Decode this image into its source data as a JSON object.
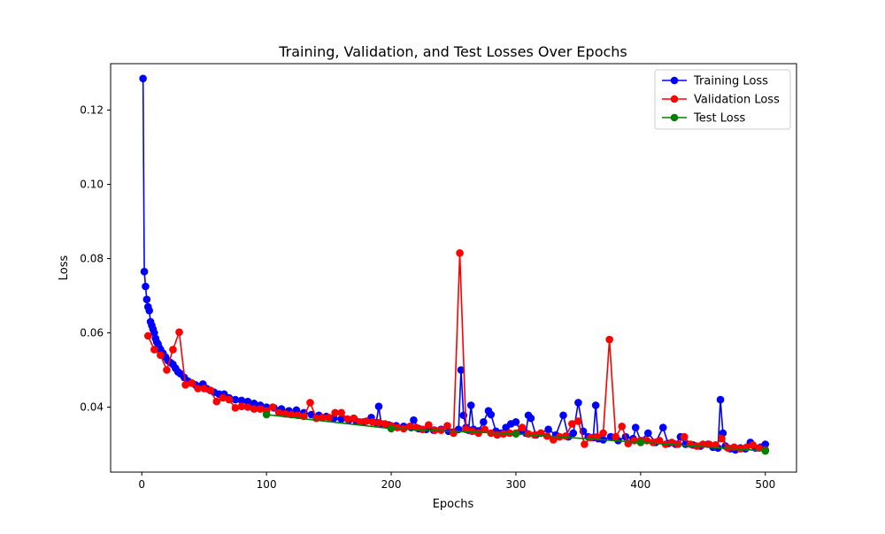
{
  "chart_data": {
    "type": "line",
    "title": "Training, Validation, and Test Losses Over Epochs",
    "xlabel": "Epochs",
    "ylabel": "Loss",
    "xlim": [
      -25,
      525
    ],
    "ylim": [
      0.0225,
      0.1325
    ],
    "xticks": [
      0,
      100,
      200,
      300,
      400,
      500
    ],
    "yticks": [
      0.04,
      0.06,
      0.08,
      0.1,
      0.12
    ],
    "xtick_labels": [
      "0",
      "100",
      "200",
      "300",
      "400",
      "500"
    ],
    "ytick_labels": [
      "0.04",
      "0.06",
      "0.08",
      "0.10",
      "0.12"
    ],
    "grid": false,
    "legend_position": "top-right",
    "series": [
      {
        "name": "Training Loss",
        "color": "#0000ff",
        "marker": "circle",
        "points": [
          [
            1,
            0.1285
          ],
          [
            2,
            0.0765
          ],
          [
            3,
            0.0725
          ],
          [
            4,
            0.069
          ],
          [
            5,
            0.067
          ],
          [
            6,
            0.066
          ],
          [
            7,
            0.063
          ],
          [
            8,
            0.062
          ],
          [
            9,
            0.061
          ],
          [
            10,
            0.06
          ],
          [
            11,
            0.0585
          ],
          [
            12,
            0.0575
          ],
          [
            13,
            0.057
          ],
          [
            14,
            0.056
          ],
          [
            15,
            0.0555
          ],
          [
            17,
            0.0545
          ],
          [
            19,
            0.0535
          ],
          [
            21,
            0.0525
          ],
          [
            23,
            0.052
          ],
          [
            25,
            0.0515
          ],
          [
            27,
            0.0505
          ],
          [
            29,
            0.0495
          ],
          [
            31,
            0.049
          ],
          [
            34,
            0.048
          ],
          [
            37,
            0.047
          ],
          [
            40,
            0.0465
          ],
          [
            43,
            0.046
          ],
          [
            46,
            0.0455
          ],
          [
            49,
            0.0462
          ],
          [
            52,
            0.045
          ],
          [
            55,
            0.0445
          ],
          [
            58,
            0.044
          ],
          [
            62,
            0.0435
          ],
          [
            66,
            0.0435
          ],
          [
            70,
            0.0425
          ],
          [
            75,
            0.042
          ],
          [
            80,
            0.0418
          ],
          [
            85,
            0.0415
          ],
          [
            90,
            0.041
          ],
          [
            95,
            0.0405
          ],
          [
            100,
            0.04
          ],
          [
            106,
            0.0398
          ],
          [
            112,
            0.0395
          ],
          [
            118,
            0.039
          ],
          [
            124,
            0.0392
          ],
          [
            130,
            0.0385
          ],
          [
            136,
            0.038
          ],
          [
            142,
            0.0378
          ],
          [
            148,
            0.0375
          ],
          [
            154,
            0.037
          ],
          [
            160,
            0.0368
          ],
          [
            166,
            0.0365
          ],
          [
            172,
            0.0362
          ],
          [
            178,
            0.036
          ],
          [
            184,
            0.0372
          ],
          [
            188,
            0.0358
          ],
          [
            190,
            0.0402
          ],
          [
            192,
            0.0355
          ],
          [
            198,
            0.0352
          ],
          [
            204,
            0.035
          ],
          [
            210,
            0.0348
          ],
          [
            216,
            0.0345
          ],
          [
            218,
            0.0365
          ],
          [
            222,
            0.0342
          ],
          [
            228,
            0.034
          ],
          [
            234,
            0.0338
          ],
          [
            240,
            0.034
          ],
          [
            246,
            0.0335
          ],
          [
            250,
            0.0333
          ],
          [
            254,
            0.034
          ],
          [
            256,
            0.05
          ],
          [
            258,
            0.0378
          ],
          [
            260,
            0.0345
          ],
          [
            262,
            0.0338
          ],
          [
            264,
            0.0405
          ],
          [
            266,
            0.034
          ],
          [
            270,
            0.0336
          ],
          [
            274,
            0.036
          ],
          [
            278,
            0.039
          ],
          [
            280,
            0.038
          ],
          [
            284,
            0.0335
          ],
          [
            288,
            0.033
          ],
          [
            292,
            0.0345
          ],
          [
            296,
            0.0355
          ],
          [
            300,
            0.036
          ],
          [
            304,
            0.0335
          ],
          [
            308,
            0.033
          ],
          [
            310,
            0.0378
          ],
          [
            312,
            0.037
          ],
          [
            316,
            0.0325
          ],
          [
            320,
            0.033
          ],
          [
            326,
            0.034
          ],
          [
            332,
            0.0325
          ],
          [
            338,
            0.0378
          ],
          [
            342,
            0.032
          ],
          [
            346,
            0.033
          ],
          [
            350,
            0.0412
          ],
          [
            354,
            0.0335
          ],
          [
            358,
            0.032
          ],
          [
            362,
            0.0318
          ],
          [
            364,
            0.0405
          ],
          [
            366,
            0.0315
          ],
          [
            370,
            0.0312
          ],
          [
            376,
            0.032
          ],
          [
            382,
            0.031
          ],
          [
            388,
            0.032
          ],
          [
            394,
            0.0315
          ],
          [
            396,
            0.0345
          ],
          [
            400,
            0.031
          ],
          [
            406,
            0.033
          ],
          [
            412,
            0.0305
          ],
          [
            418,
            0.0345
          ],
          [
            422,
            0.0302
          ],
          [
            428,
            0.03
          ],
          [
            432,
            0.032
          ],
          [
            436,
            0.03
          ],
          [
            442,
            0.0298
          ],
          [
            448,
            0.0295
          ],
          [
            454,
            0.03
          ],
          [
            458,
            0.0292
          ],
          [
            462,
            0.029
          ],
          [
            464,
            0.042
          ],
          [
            466,
            0.033
          ],
          [
            468,
            0.0295
          ],
          [
            472,
            0.0288
          ],
          [
            476,
            0.0285
          ],
          [
            480,
            0.029
          ],
          [
            484,
            0.0288
          ],
          [
            488,
            0.0305
          ],
          [
            492,
            0.029
          ],
          [
            496,
            0.0292
          ],
          [
            500,
            0.03
          ]
        ]
      },
      {
        "name": "Validation Loss",
        "color": "#ff0000",
        "marker": "circle",
        "points": [
          [
            5,
            0.0592
          ],
          [
            10,
            0.0555
          ],
          [
            15,
            0.054
          ],
          [
            20,
            0.05
          ],
          [
            25,
            0.0555
          ],
          [
            30,
            0.0602
          ],
          [
            35,
            0.046
          ],
          [
            40,
            0.0465
          ],
          [
            45,
            0.045
          ],
          [
            50,
            0.045
          ],
          [
            55,
            0.0445
          ],
          [
            60,
            0.0415
          ],
          [
            65,
            0.0425
          ],
          [
            70,
            0.042
          ],
          [
            75,
            0.0398
          ],
          [
            80,
            0.0402
          ],
          [
            85,
            0.04
          ],
          [
            90,
            0.0395
          ],
          [
            95,
            0.0395
          ],
          [
            100,
            0.039
          ],
          [
            105,
            0.04
          ],
          [
            110,
            0.0385
          ],
          [
            115,
            0.0382
          ],
          [
            120,
            0.038
          ],
          [
            125,
            0.0378
          ],
          [
            130,
            0.0375
          ],
          [
            135,
            0.0412
          ],
          [
            140,
            0.037
          ],
          [
            145,
            0.0372
          ],
          [
            150,
            0.0372
          ],
          [
            155,
            0.0385
          ],
          [
            160,
            0.0385
          ],
          [
            165,
            0.0368
          ],
          [
            170,
            0.037
          ],
          [
            175,
            0.036
          ],
          [
            180,
            0.0362
          ],
          [
            185,
            0.036
          ],
          [
            190,
            0.0358
          ],
          [
            195,
            0.0355
          ],
          [
            200,
            0.035
          ],
          [
            205,
            0.0345
          ],
          [
            210,
            0.0342
          ],
          [
            215,
            0.0348
          ],
          [
            220,
            0.0345
          ],
          [
            225,
            0.034
          ],
          [
            230,
            0.0352
          ],
          [
            235,
            0.0338
          ],
          [
            240,
            0.0338
          ],
          [
            245,
            0.035
          ],
          [
            250,
            0.033
          ],
          [
            255,
            0.0815
          ],
          [
            260,
            0.034
          ],
          [
            265,
            0.0335
          ],
          [
            270,
            0.033
          ],
          [
            275,
            0.034
          ],
          [
            280,
            0.033
          ],
          [
            285,
            0.0325
          ],
          [
            290,
            0.0328
          ],
          [
            295,
            0.033
          ],
          [
            300,
            0.033
          ],
          [
            305,
            0.0345
          ],
          [
            310,
            0.0328
          ],
          [
            315,
            0.0325
          ],
          [
            320,
            0.033
          ],
          [
            325,
            0.0322
          ],
          [
            330,
            0.0312
          ],
          [
            335,
            0.032
          ],
          [
            340,
            0.0322
          ],
          [
            345,
            0.0355
          ],
          [
            350,
            0.0362
          ],
          [
            355,
            0.03
          ],
          [
            360,
            0.0318
          ],
          [
            365,
            0.032
          ],
          [
            370,
            0.033
          ],
          [
            375,
            0.0582
          ],
          [
            380,
            0.032
          ],
          [
            385,
            0.0348
          ],
          [
            390,
            0.0302
          ],
          [
            395,
            0.031
          ],
          [
            400,
            0.031
          ],
          [
            405,
            0.031
          ],
          [
            410,
            0.0305
          ],
          [
            415,
            0.031
          ],
          [
            420,
            0.03
          ],
          [
            425,
            0.0305
          ],
          [
            430,
            0.03
          ],
          [
            435,
            0.032
          ],
          [
            440,
            0.03
          ],
          [
            445,
            0.0295
          ],
          [
            450,
            0.03
          ],
          [
            455,
            0.03
          ],
          [
            460,
            0.0298
          ],
          [
            465,
            0.0315
          ],
          [
            470,
            0.029
          ],
          [
            475,
            0.0292
          ],
          [
            480,
            0.0288
          ],
          [
            485,
            0.0292
          ],
          [
            490,
            0.0298
          ],
          [
            495,
            0.029
          ],
          [
            500,
            0.0285
          ]
        ]
      },
      {
        "name": "Test Loss",
        "color": "#008000",
        "marker": "circle",
        "points": [
          [
            100,
            0.038
          ],
          [
            200,
            0.0342
          ],
          [
            300,
            0.0328
          ],
          [
            400,
            0.0305
          ],
          [
            500,
            0.0282
          ]
        ]
      }
    ]
  }
}
